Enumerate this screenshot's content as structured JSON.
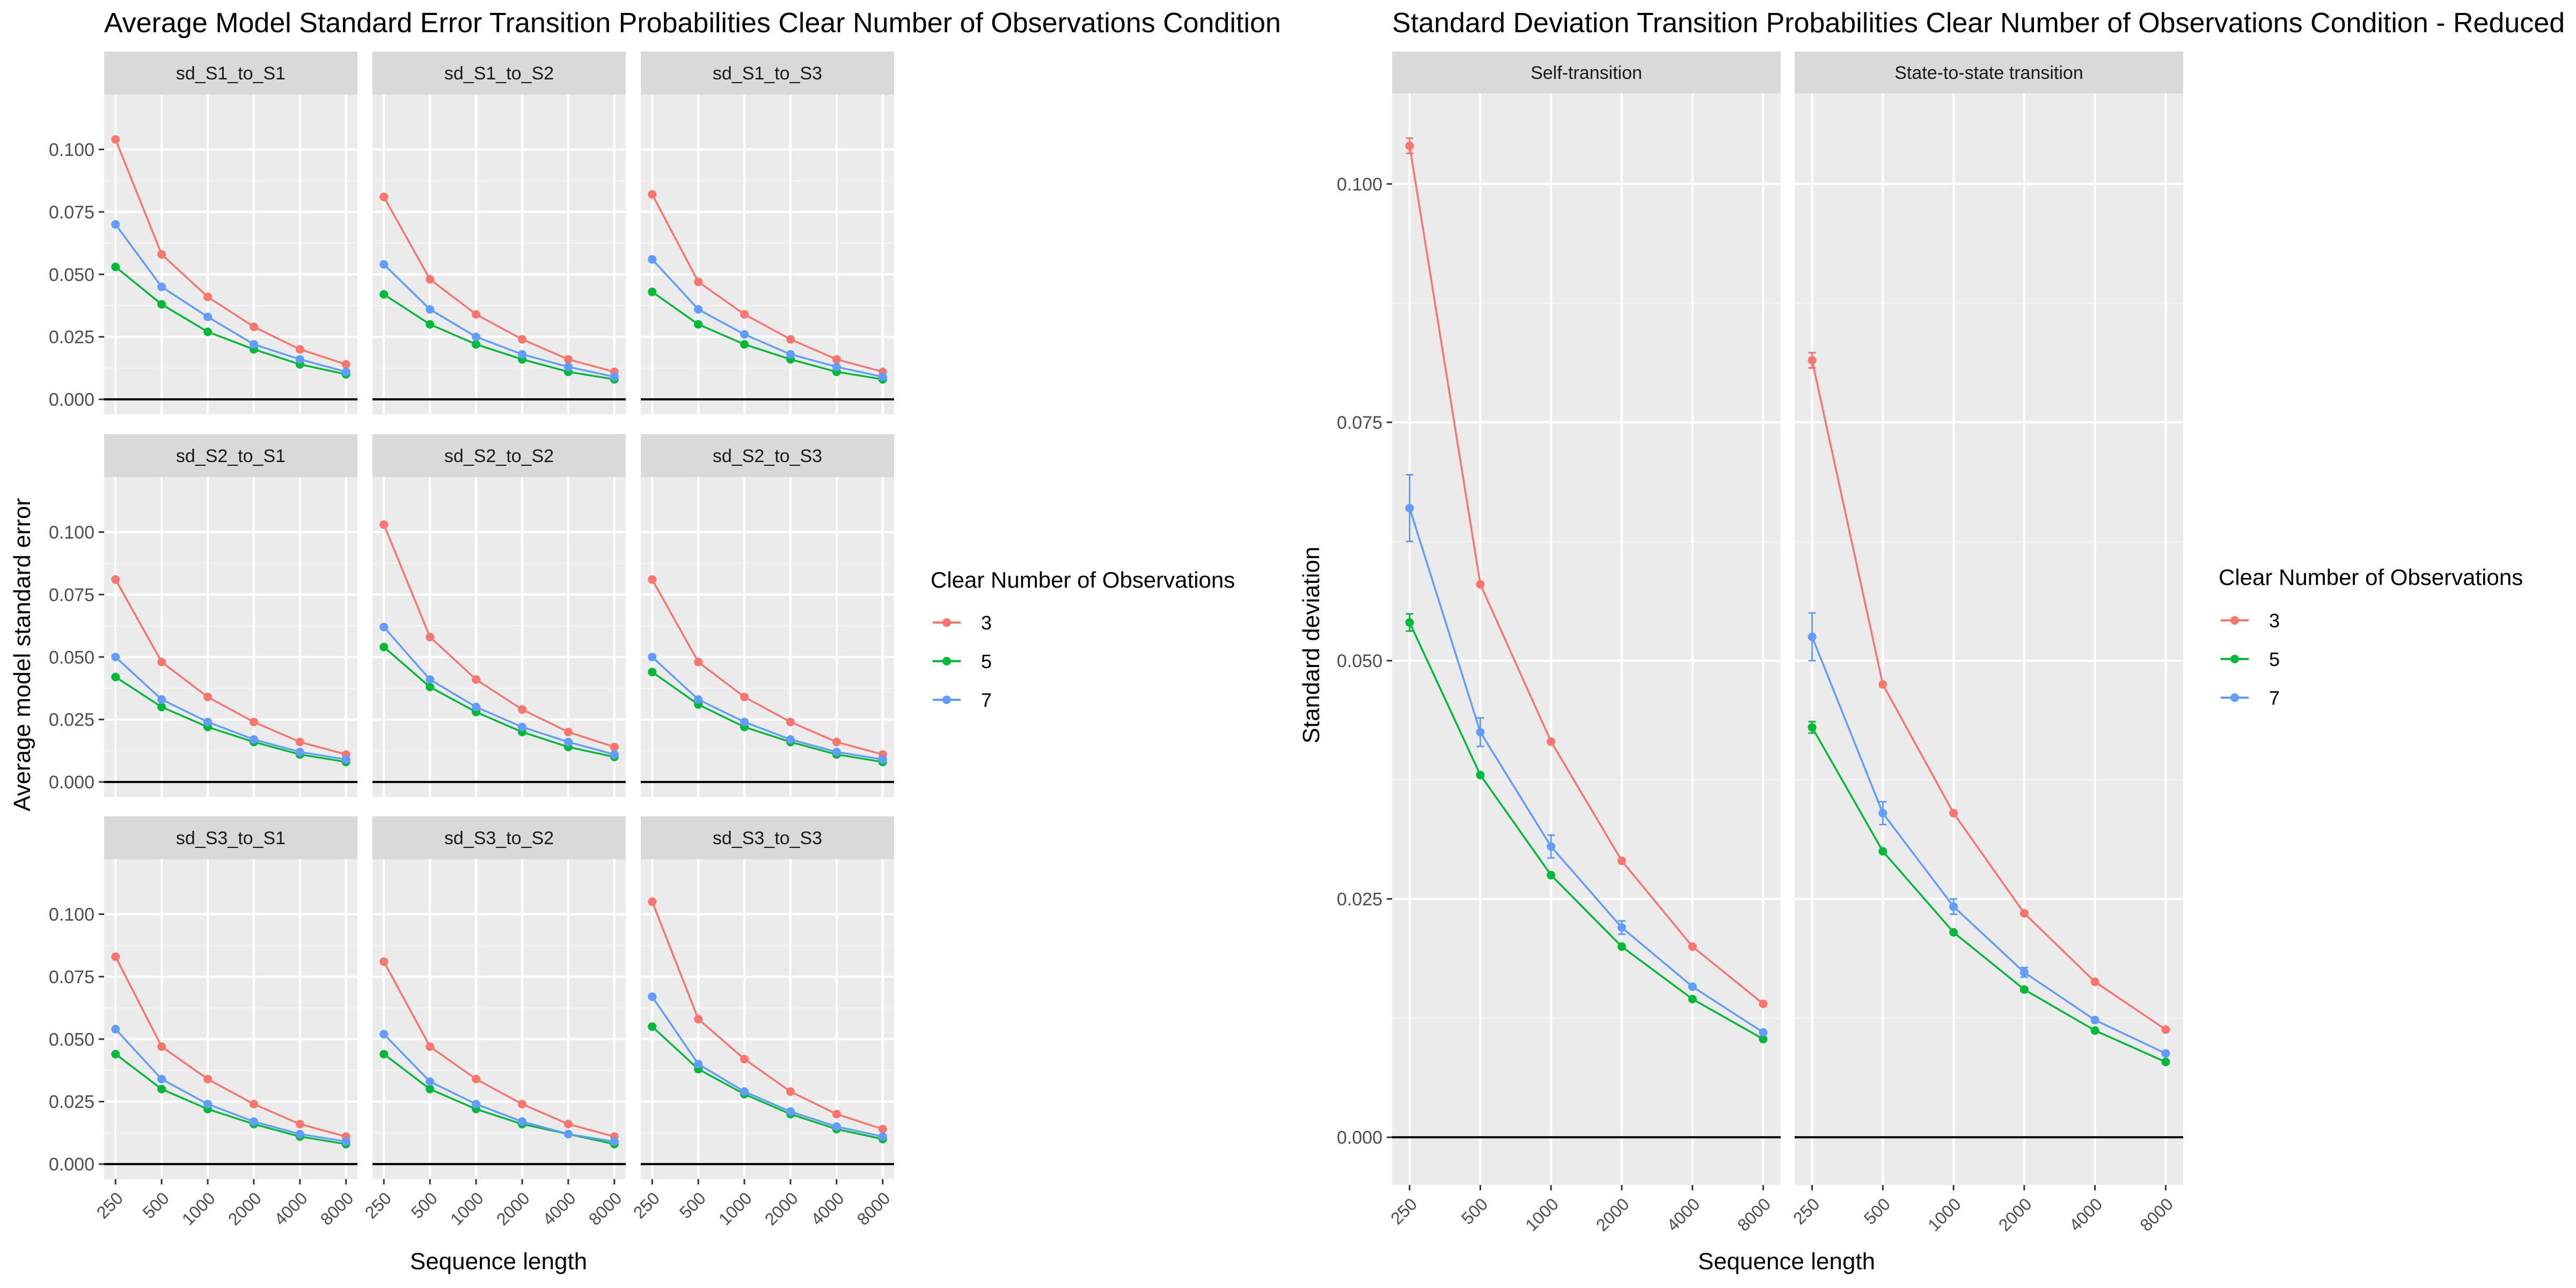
{
  "colors": {
    "3": "#F8766D",
    "5": "#00BA38",
    "7": "#619CFF"
  },
  "chart_data": [
    {
      "type": "line",
      "title": "Average Model Standard Error Transition Probabilities Clear Number of Observations Condition",
      "xlabel": "Sequence length",
      "ylabel": "Average model standard error",
      "x": [
        "250",
        "500",
        "1000",
        "2000",
        "4000",
        "8000"
      ],
      "ylim": [
        -0.006,
        0.122
      ],
      "yticks": [
        "0.000",
        "0.025",
        "0.050",
        "0.075",
        "0.100"
      ],
      "grid": true,
      "legend": {
        "title": "Clear Number of Observations",
        "entries": [
          "3",
          "5",
          "7"
        ],
        "position": "right"
      },
      "panels": [
        {
          "label": "sd_S1_to_S1",
          "series": [
            {
              "name": "3",
              "values": [
                0.104,
                0.058,
                0.041,
                0.029,
                0.02,
                0.014
              ]
            },
            {
              "name": "5",
              "values": [
                0.053,
                0.038,
                0.027,
                0.02,
                0.014,
                0.01
              ]
            },
            {
              "name": "7",
              "values": [
                0.07,
                0.045,
                0.033,
                0.022,
                0.016,
                0.011
              ]
            }
          ]
        },
        {
          "label": "sd_S1_to_S2",
          "series": [
            {
              "name": "3",
              "values": [
                0.081,
                0.048,
                0.034,
                0.024,
                0.016,
                0.011
              ]
            },
            {
              "name": "5",
              "values": [
                0.042,
                0.03,
                0.022,
                0.016,
                0.011,
                0.008
              ]
            },
            {
              "name": "7",
              "values": [
                0.054,
                0.036,
                0.025,
                0.018,
                0.013,
                0.009
              ]
            }
          ]
        },
        {
          "label": "sd_S1_to_S3",
          "series": [
            {
              "name": "3",
              "values": [
                0.082,
                0.047,
                0.034,
                0.024,
                0.016,
                0.011
              ]
            },
            {
              "name": "5",
              "values": [
                0.043,
                0.03,
                0.022,
                0.016,
                0.011,
                0.008
              ]
            },
            {
              "name": "7",
              "values": [
                0.056,
                0.036,
                0.026,
                0.018,
                0.013,
                0.009
              ]
            }
          ]
        },
        {
          "label": "sd_S2_to_S1",
          "series": [
            {
              "name": "3",
              "values": [
                0.081,
                0.048,
                0.034,
                0.024,
                0.016,
                0.011
              ]
            },
            {
              "name": "5",
              "values": [
                0.042,
                0.03,
                0.022,
                0.016,
                0.011,
                0.008
              ]
            },
            {
              "name": "7",
              "values": [
                0.05,
                0.033,
                0.024,
                0.017,
                0.012,
                0.009
              ]
            }
          ]
        },
        {
          "label": "sd_S2_to_S2",
          "series": [
            {
              "name": "3",
              "values": [
                0.103,
                0.058,
                0.041,
                0.029,
                0.02,
                0.014
              ]
            },
            {
              "name": "5",
              "values": [
                0.054,
                0.038,
                0.028,
                0.02,
                0.014,
                0.01
              ]
            },
            {
              "name": "7",
              "values": [
                0.062,
                0.041,
                0.03,
                0.022,
                0.016,
                0.011
              ]
            }
          ]
        },
        {
          "label": "sd_S2_to_S3",
          "series": [
            {
              "name": "3",
              "values": [
                0.081,
                0.048,
                0.034,
                0.024,
                0.016,
                0.011
              ]
            },
            {
              "name": "5",
              "values": [
                0.044,
                0.031,
                0.022,
                0.016,
                0.011,
                0.008
              ]
            },
            {
              "name": "7",
              "values": [
                0.05,
                0.033,
                0.024,
                0.017,
                0.012,
                0.009
              ]
            }
          ]
        },
        {
          "label": "sd_S3_to_S1",
          "series": [
            {
              "name": "3",
              "values": [
                0.083,
                0.047,
                0.034,
                0.024,
                0.016,
                0.011
              ]
            },
            {
              "name": "5",
              "values": [
                0.044,
                0.03,
                0.022,
                0.016,
                0.011,
                0.008
              ]
            },
            {
              "name": "7",
              "values": [
                0.054,
                0.034,
                0.024,
                0.017,
                0.012,
                0.009
              ]
            }
          ]
        },
        {
          "label": "sd_S3_to_S2",
          "series": [
            {
              "name": "3",
              "values": [
                0.081,
                0.047,
                0.034,
                0.024,
                0.016,
                0.011
              ]
            },
            {
              "name": "5",
              "values": [
                0.044,
                0.03,
                0.022,
                0.016,
                0.012,
                0.008
              ]
            },
            {
              "name": "7",
              "values": [
                0.052,
                0.033,
                0.024,
                0.017,
                0.012,
                0.009
              ]
            }
          ]
        },
        {
          "label": "sd_S3_to_S3",
          "series": [
            {
              "name": "3",
              "values": [
                0.105,
                0.058,
                0.042,
                0.029,
                0.02,
                0.014
              ]
            },
            {
              "name": "5",
              "values": [
                0.055,
                0.038,
                0.028,
                0.02,
                0.014,
                0.01
              ]
            },
            {
              "name": "7",
              "values": [
                0.067,
                0.04,
                0.029,
                0.021,
                0.015,
                0.011
              ]
            }
          ]
        }
      ]
    },
    {
      "type": "line",
      "title": "Standard Deviation Transition Probabilities Clear Number of Observations Condition - Reduced",
      "xlabel": "Sequence length",
      "ylabel": "Standard deviation",
      "x": [
        "250",
        "500",
        "1000",
        "2000",
        "4000",
        "8000"
      ],
      "ylim": [
        -0.005,
        0.1095
      ],
      "yticks": [
        "0.000",
        "0.025",
        "0.050",
        "0.075",
        "0.100"
      ],
      "grid": true,
      "error_bars": true,
      "legend": {
        "title": "Clear Number of Observations",
        "entries": [
          "3",
          "5",
          "7"
        ],
        "position": "right"
      },
      "panels": [
        {
          "label": "Self-transition",
          "series": [
            {
              "name": "3",
              "values": [
                0.104,
                0.058,
                0.0415,
                0.029,
                0.02,
                0.014
              ],
              "errors": [
                0.0008,
                0,
                0,
                0,
                0,
                0
              ]
            },
            {
              "name": "5",
              "values": [
                0.054,
                0.038,
                0.0275,
                0.02,
                0.0145,
                0.0103
              ],
              "errors": [
                0.0009,
                0,
                0,
                0,
                0,
                0
              ]
            },
            {
              "name": "7",
              "values": [
                0.066,
                0.0425,
                0.0305,
                0.022,
                0.0158,
                0.011
              ],
              "errors": [
                0.0035,
                0.0015,
                0.0012,
                0.0007,
                0,
                0
              ]
            }
          ]
        },
        {
          "label": "State-to-state transition",
          "series": [
            {
              "name": "3",
              "values": [
                0.0815,
                0.0475,
                0.034,
                0.0235,
                0.0163,
                0.0113
              ],
              "errors": [
                0.0008,
                0,
                0,
                0,
                0,
                0
              ]
            },
            {
              "name": "5",
              "values": [
                0.043,
                0.03,
                0.0215,
                0.0155,
                0.0112,
                0.0079
              ],
              "errors": [
                0.0006,
                0,
                0,
                0,
                0,
                0
              ]
            },
            {
              "name": "7",
              "values": [
                0.0525,
                0.034,
                0.0242,
                0.0173,
                0.0123,
                0.0088
              ],
              "errors": [
                0.0025,
                0.0012,
                0.0008,
                0.0005,
                0,
                0
              ]
            }
          ]
        }
      ]
    }
  ]
}
